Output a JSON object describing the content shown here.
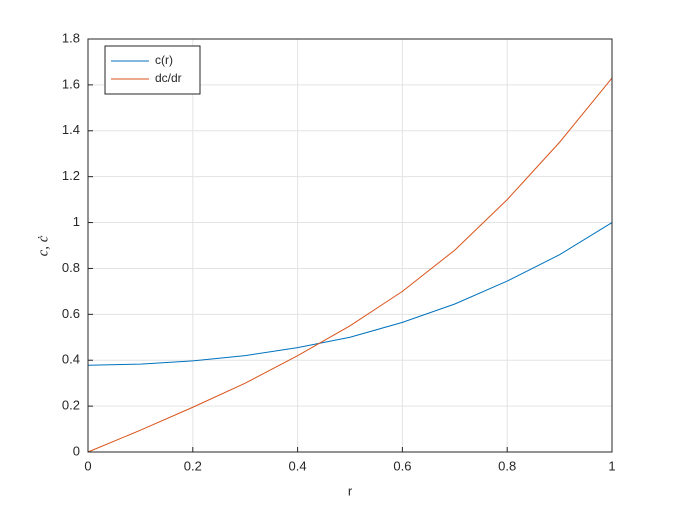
{
  "chart_data": {
    "type": "line",
    "x_label": "r",
    "y_label": "c, ċ",
    "x": [
      0,
      0.1,
      0.2,
      0.3,
      0.4,
      0.5,
      0.6,
      0.7,
      0.8,
      0.9,
      1
    ],
    "series": [
      {
        "name": "c(r)",
        "color": "#0072bd",
        "values": [
          0.378,
          0.383,
          0.397,
          0.42,
          0.455,
          0.5,
          0.565,
          0.645,
          0.745,
          0.86,
          1.0
        ]
      },
      {
        "name": "dc/dr",
        "color": "#d95319",
        "values": [
          0,
          0.095,
          0.195,
          0.3,
          0.42,
          0.55,
          0.7,
          0.88,
          1.1,
          1.35,
          1.63
        ]
      }
    ],
    "xlim": [
      0,
      1
    ],
    "ylim": [
      0,
      1.8
    ],
    "xticks": [
      0,
      0.2,
      0.4,
      0.6,
      0.8,
      1
    ],
    "yticks": [
      0,
      0.2,
      0.4,
      0.6,
      0.8,
      1,
      1.2,
      1.4,
      1.6,
      1.8
    ],
    "grid": true,
    "legend_position": "upper-left"
  }
}
